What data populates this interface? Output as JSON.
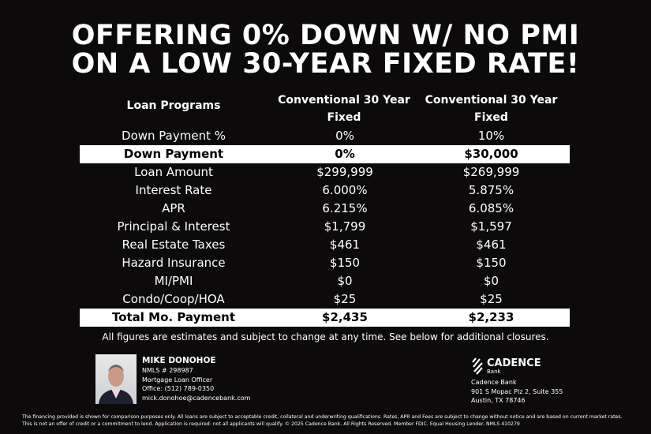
{
  "headline": {
    "line1": "OFFERING 0% DOWN W/ NO PMI",
    "line2": "ON A LOW 30-YEAR FIXED RATE!"
  },
  "table": {
    "headers": [
      "Loan Programs",
      "Conventional 30 Year Fixed",
      "Conventional 30 Year Fixed"
    ],
    "rows": [
      {
        "label": "Down Payment %",
        "a": "0%",
        "b": "10%",
        "highlight": false
      },
      {
        "label": "Down Payment",
        "a": "0%",
        "b": "$30,000",
        "highlight": true
      },
      {
        "label": "Loan Amount",
        "a": "$299,999",
        "b": "$269,999",
        "highlight": false
      },
      {
        "label": "Interest Rate",
        "a": "6.000%",
        "b": "5.875%",
        "highlight": false
      },
      {
        "label": "APR",
        "a": "6.215%",
        "b": "6.085%",
        "highlight": false
      },
      {
        "label": "Principal & Interest",
        "a": "$1,799",
        "b": "$1,597",
        "highlight": false
      },
      {
        "label": "Real Estate Taxes",
        "a": "$461",
        "b": "$461",
        "highlight": false
      },
      {
        "label": "Hazard Insurance",
        "a": "$150",
        "b": "$150",
        "highlight": false
      },
      {
        "label": "MI/PMI",
        "a": "$0",
        "b": "$0",
        "highlight": false
      },
      {
        "label": "Condo/Coop/HOA",
        "a": "$25",
        "b": "$25",
        "highlight": false
      },
      {
        "label": "Total Mo. Payment",
        "a": "$2,435",
        "b": "$2,233",
        "highlight": true
      }
    ]
  },
  "note": "All figures are estimates and subject to change at any time. See below for additional closures.",
  "contact": {
    "name": "MIKE DONOHOE",
    "nmls": "NMLS # 298987",
    "title": "Mortgage Loan Officer",
    "office": "Office: (512) 789-0350",
    "email": "mick.donohoe@cadencebank.com"
  },
  "bank": {
    "logo_text": "CADENCE",
    "logo_sub": "Bank",
    "name": "Cadence Bank",
    "address1": "901 S Mopac Plz 2, Suite 355",
    "address2": "Austin, TX 78746"
  },
  "disclaimer": "The financing provided is shown for comparison purposes only. All loans are subject to acceptable credit, collateral and underwriting qualifications. Rates, APR and Fees are subject to change without notice and are based on current market rates. This is not an offer of credit or a commitment to lend. Application is required: not all applicants will qualify. © 2025 Cadence Bank. All Rights Reserved. Member FDIC. Equal Housing Lender. NMLS 410279"
}
